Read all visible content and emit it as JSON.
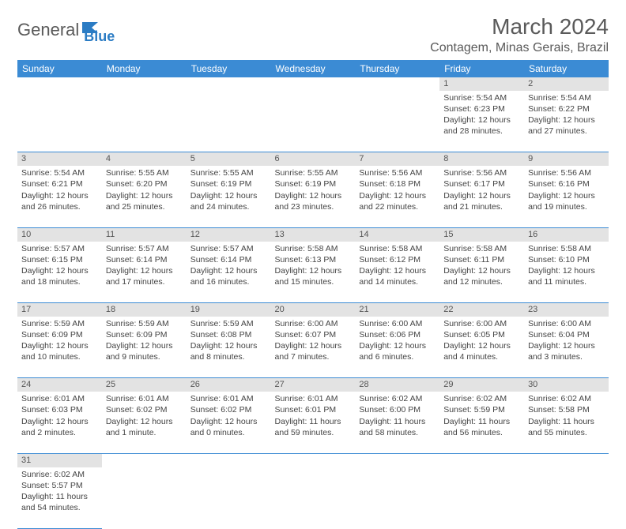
{
  "logo": {
    "text1": "General",
    "text2": "Blue"
  },
  "title": "March 2024",
  "location": "Contagem, Minas Gerais, Brazil",
  "day_headers": [
    "Sunday",
    "Monday",
    "Tuesday",
    "Wednesday",
    "Thursday",
    "Friday",
    "Saturday"
  ],
  "colors": {
    "header_bg": "#3b8bd4",
    "header_fg": "#ffffff",
    "daynum_bg": "#e3e3e3",
    "cell_border": "#3b8bd4",
    "text": "#444444",
    "title_color": "#5a5a5a"
  },
  "weeks": [
    [
      null,
      null,
      null,
      null,
      null,
      {
        "n": "1",
        "sr": "Sunrise: 5:54 AM",
        "ss": "Sunset: 6:23 PM",
        "dl": "Daylight: 12 hours and 28 minutes."
      },
      {
        "n": "2",
        "sr": "Sunrise: 5:54 AM",
        "ss": "Sunset: 6:22 PM",
        "dl": "Daylight: 12 hours and 27 minutes."
      }
    ],
    [
      {
        "n": "3",
        "sr": "Sunrise: 5:54 AM",
        "ss": "Sunset: 6:21 PM",
        "dl": "Daylight: 12 hours and 26 minutes."
      },
      {
        "n": "4",
        "sr": "Sunrise: 5:55 AM",
        "ss": "Sunset: 6:20 PM",
        "dl": "Daylight: 12 hours and 25 minutes."
      },
      {
        "n": "5",
        "sr": "Sunrise: 5:55 AM",
        "ss": "Sunset: 6:19 PM",
        "dl": "Daylight: 12 hours and 24 minutes."
      },
      {
        "n": "6",
        "sr": "Sunrise: 5:55 AM",
        "ss": "Sunset: 6:19 PM",
        "dl": "Daylight: 12 hours and 23 minutes."
      },
      {
        "n": "7",
        "sr": "Sunrise: 5:56 AM",
        "ss": "Sunset: 6:18 PM",
        "dl": "Daylight: 12 hours and 22 minutes."
      },
      {
        "n": "8",
        "sr": "Sunrise: 5:56 AM",
        "ss": "Sunset: 6:17 PM",
        "dl": "Daylight: 12 hours and 21 minutes."
      },
      {
        "n": "9",
        "sr": "Sunrise: 5:56 AM",
        "ss": "Sunset: 6:16 PM",
        "dl": "Daylight: 12 hours and 19 minutes."
      }
    ],
    [
      {
        "n": "10",
        "sr": "Sunrise: 5:57 AM",
        "ss": "Sunset: 6:15 PM",
        "dl": "Daylight: 12 hours and 18 minutes."
      },
      {
        "n": "11",
        "sr": "Sunrise: 5:57 AM",
        "ss": "Sunset: 6:14 PM",
        "dl": "Daylight: 12 hours and 17 minutes."
      },
      {
        "n": "12",
        "sr": "Sunrise: 5:57 AM",
        "ss": "Sunset: 6:14 PM",
        "dl": "Daylight: 12 hours and 16 minutes."
      },
      {
        "n": "13",
        "sr": "Sunrise: 5:58 AM",
        "ss": "Sunset: 6:13 PM",
        "dl": "Daylight: 12 hours and 15 minutes."
      },
      {
        "n": "14",
        "sr": "Sunrise: 5:58 AM",
        "ss": "Sunset: 6:12 PM",
        "dl": "Daylight: 12 hours and 14 minutes."
      },
      {
        "n": "15",
        "sr": "Sunrise: 5:58 AM",
        "ss": "Sunset: 6:11 PM",
        "dl": "Daylight: 12 hours and 12 minutes."
      },
      {
        "n": "16",
        "sr": "Sunrise: 5:58 AM",
        "ss": "Sunset: 6:10 PM",
        "dl": "Daylight: 12 hours and 11 minutes."
      }
    ],
    [
      {
        "n": "17",
        "sr": "Sunrise: 5:59 AM",
        "ss": "Sunset: 6:09 PM",
        "dl": "Daylight: 12 hours and 10 minutes."
      },
      {
        "n": "18",
        "sr": "Sunrise: 5:59 AM",
        "ss": "Sunset: 6:09 PM",
        "dl": "Daylight: 12 hours and 9 minutes."
      },
      {
        "n": "19",
        "sr": "Sunrise: 5:59 AM",
        "ss": "Sunset: 6:08 PM",
        "dl": "Daylight: 12 hours and 8 minutes."
      },
      {
        "n": "20",
        "sr": "Sunrise: 6:00 AM",
        "ss": "Sunset: 6:07 PM",
        "dl": "Daylight: 12 hours and 7 minutes."
      },
      {
        "n": "21",
        "sr": "Sunrise: 6:00 AM",
        "ss": "Sunset: 6:06 PM",
        "dl": "Daylight: 12 hours and 6 minutes."
      },
      {
        "n": "22",
        "sr": "Sunrise: 6:00 AM",
        "ss": "Sunset: 6:05 PM",
        "dl": "Daylight: 12 hours and 4 minutes."
      },
      {
        "n": "23",
        "sr": "Sunrise: 6:00 AM",
        "ss": "Sunset: 6:04 PM",
        "dl": "Daylight: 12 hours and 3 minutes."
      }
    ],
    [
      {
        "n": "24",
        "sr": "Sunrise: 6:01 AM",
        "ss": "Sunset: 6:03 PM",
        "dl": "Daylight: 12 hours and 2 minutes."
      },
      {
        "n": "25",
        "sr": "Sunrise: 6:01 AM",
        "ss": "Sunset: 6:02 PM",
        "dl": "Daylight: 12 hours and 1 minute."
      },
      {
        "n": "26",
        "sr": "Sunrise: 6:01 AM",
        "ss": "Sunset: 6:02 PM",
        "dl": "Daylight: 12 hours and 0 minutes."
      },
      {
        "n": "27",
        "sr": "Sunrise: 6:01 AM",
        "ss": "Sunset: 6:01 PM",
        "dl": "Daylight: 11 hours and 59 minutes."
      },
      {
        "n": "28",
        "sr": "Sunrise: 6:02 AM",
        "ss": "Sunset: 6:00 PM",
        "dl": "Daylight: 11 hours and 58 minutes."
      },
      {
        "n": "29",
        "sr": "Sunrise: 6:02 AM",
        "ss": "Sunset: 5:59 PM",
        "dl": "Daylight: 11 hours and 56 minutes."
      },
      {
        "n": "30",
        "sr": "Sunrise: 6:02 AM",
        "ss": "Sunset: 5:58 PM",
        "dl": "Daylight: 11 hours and 55 minutes."
      }
    ],
    [
      {
        "n": "31",
        "sr": "Sunrise: 6:02 AM",
        "ss": "Sunset: 5:57 PM",
        "dl": "Daylight: 11 hours and 54 minutes."
      },
      null,
      null,
      null,
      null,
      null,
      null
    ]
  ]
}
